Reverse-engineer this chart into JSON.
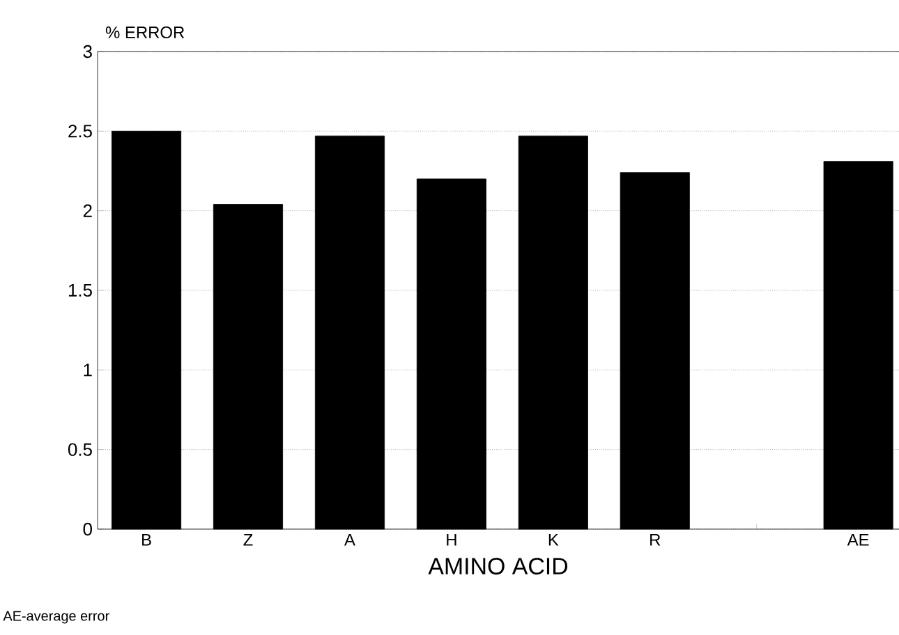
{
  "chart_data": {
    "type": "bar",
    "ylabel": "% ERROR",
    "xlabel": "AMINO ACID",
    "categories": [
      "B",
      "Z",
      "A",
      "H",
      "K",
      "R",
      null,
      "AE"
    ],
    "values": [
      2.5,
      2.04,
      2.47,
      2.2,
      2.47,
      2.24,
      null,
      2.31
    ],
    "color": "#000000",
    "ylim": [
      0,
      3
    ],
    "yticks": [
      0,
      0.5,
      1,
      1.5,
      2,
      2.5,
      3
    ],
    "grid": "y",
    "annotations": [
      "AE-average error"
    ]
  }
}
